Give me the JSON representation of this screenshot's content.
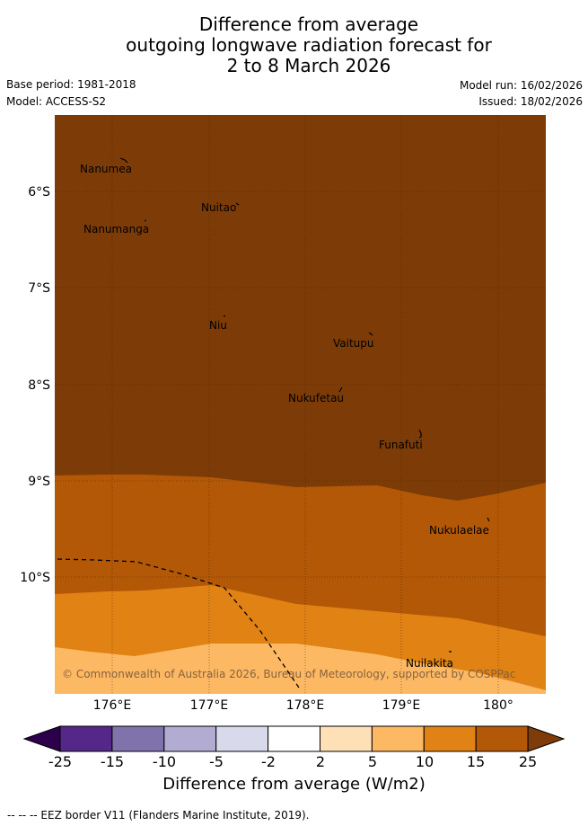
{
  "title": {
    "line1": "Difference from average",
    "line2": "outgoing longwave radiation forecast for",
    "line3": "2 to 8 March 2026"
  },
  "meta": {
    "base_period": "Base period: 1981-2018",
    "model": "Model: ACCESS-S2",
    "model_run": "Model run: 16/02/2026",
    "issued": "Issued: 18/02/2026"
  },
  "map": {
    "latitude_labels": [
      "6°S",
      "7°S",
      "8°S",
      "9°S",
      "10°S"
    ],
    "longitude_labels": [
      "176°E",
      "177°E",
      "178°E",
      "179°E",
      "180°"
    ],
    "places": [
      "Nanumea",
      "Nuitao",
      "Nanumanga",
      "Niu",
      "Vaitupu",
      "Nukufetau",
      "Funafuti",
      "Nukulaelae",
      "Nuilakita"
    ],
    "copyright": "© Commonwealth of Australia 2026, Bureau of Meteorology, supported by COSPPac",
    "anomaly_bands": [
      {
        "range": "> 25",
        "color": "#7d3c07"
      },
      {
        "range": "15 to 25",
        "color": "#b35806"
      },
      {
        "range": "10 to 15",
        "color": "#e08214"
      },
      {
        "range": "5 to 10",
        "color": "#fdb863"
      }
    ]
  },
  "colorbar": {
    "ticks": [
      "-25",
      "-15",
      "-10",
      "-5",
      "-2",
      "2",
      "5",
      "10",
      "15",
      "25"
    ],
    "colors": [
      "#542788",
      "#8073ac",
      "#b2abd2",
      "#d8daeb",
      "#ffffff",
      "#fee0b6",
      "#fdb863",
      "#e08214",
      "#b35806"
    ],
    "under_color": "#2d004b",
    "over_color": "#7f3b08",
    "title": "Difference from average (W/m2)"
  },
  "legend": {
    "eez": "--  --  -- EEZ border V11 (Flanders Marine Institute, 2019)."
  }
}
